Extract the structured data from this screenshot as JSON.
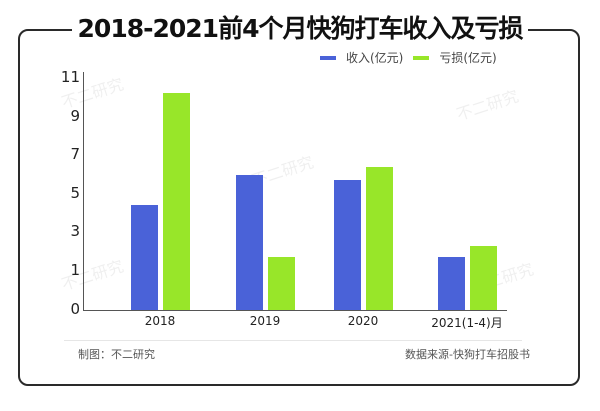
{
  "title": "2018-2021前4个月快狗打车收入及亏损",
  "legend": [
    {
      "label": "收入(亿元)",
      "color": "#4a62d8"
    },
    {
      "label": "亏损(亿元)",
      "color": "#98e629"
    }
  ],
  "footer": {
    "left": "制图：不二研究",
    "right": "数据来源-快狗打车招股书"
  },
  "watermark": "不二研究",
  "chart_data": {
    "type": "bar",
    "title": "2018-2021前4个月快狗打车收入及亏损",
    "categories": [
      "2018",
      "2019",
      "2020",
      "2021(1-4)月"
    ],
    "series": [
      {
        "name": "收入(亿元)",
        "color": "#4a62d8",
        "values": [
          4.4,
          6.0,
          5.7,
          1.7
        ]
      },
      {
        "name": "亏损(亿元)",
        "color": "#98e629",
        "values": [
          10.2,
          1.7,
          6.4,
          2.3
        ]
      }
    ],
    "yticks": [
      "11",
      "9",
      "7",
      "5",
      "3",
      "1",
      "0"
    ],
    "xlabel": "",
    "ylabel": "",
    "ylim": [
      0,
      11
    ],
    "grid": false,
    "legend_position": "top-right"
  }
}
